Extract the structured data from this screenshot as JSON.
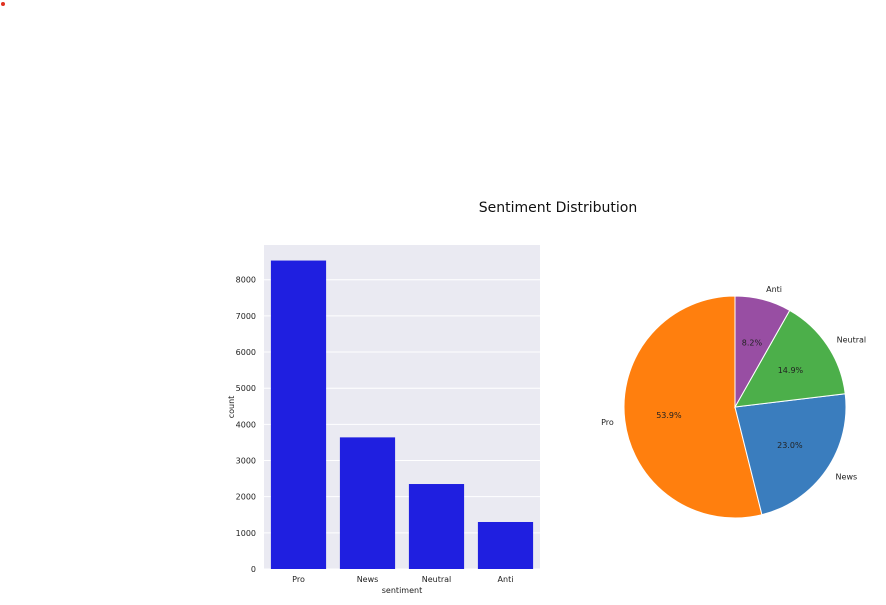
{
  "title": "Sentiment Distribution",
  "colors": {
    "bar": "#1f1fe0",
    "plot_bg": "#eaeaf2",
    "pie": [
      "#ff7f0e",
      "#3a7dbe",
      "#4caf4a",
      "#984ea3"
    ]
  },
  "chart_data": [
    {
      "type": "bar",
      "categories": [
        "Pro",
        "News",
        "Neutral",
        "Anti"
      ],
      "values": [
        8530,
        3640,
        2350,
        1300
      ],
      "xlabel": "sentiment",
      "ylabel": "count",
      "yticks": [
        0,
        1000,
        2000,
        3000,
        4000,
        5000,
        6000,
        7000,
        8000
      ],
      "ylim": [
        0,
        8960
      ],
      "grid": true
    },
    {
      "type": "pie",
      "labels": [
        "Pro",
        "News",
        "Neutral",
        "Anti"
      ],
      "values": [
        53.9,
        23.0,
        14.9,
        8.2
      ],
      "autopct": [
        "53.9%",
        "23.0%",
        "14.9%",
        "8.2%"
      ],
      "start_angle_deg": 90,
      "direction": "counterclockwise"
    }
  ]
}
